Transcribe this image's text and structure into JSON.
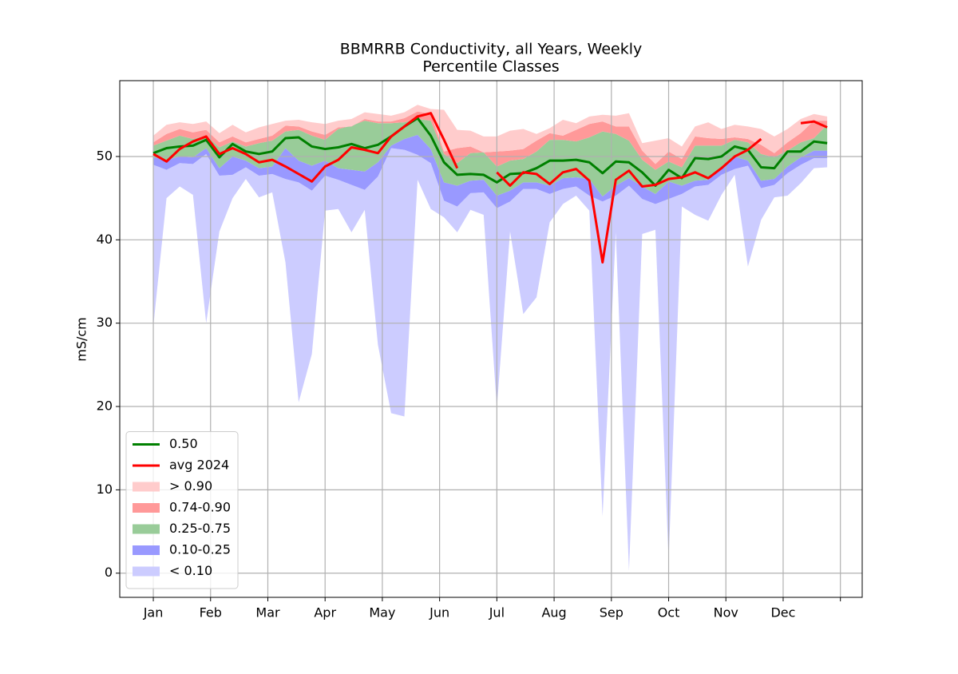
{
  "chart_data": {
    "type": "percentile-band",
    "title": [
      "BBMRRB Conductivity, all Years, Weekly",
      "Percentile Classes"
    ],
    "y_label": "mS/cm",
    "x": [
      1,
      2,
      3,
      4,
      5,
      6,
      7,
      8,
      9,
      10,
      11,
      12,
      13,
      14,
      15,
      16,
      17,
      18,
      19,
      20,
      21,
      22,
      23,
      24,
      25,
      26,
      27,
      28,
      29,
      30,
      31,
      32,
      33,
      34,
      35,
      36,
      37,
      38,
      39,
      40,
      41,
      42,
      43,
      44,
      45,
      46,
      47,
      48,
      49,
      50,
      51,
      52
    ],
    "xlim": [
      -1.54,
      54.65
    ],
    "xticks": [
      {
        "value": 1,
        "label": "Jan"
      },
      {
        "value": 5.333,
        "label": "Feb"
      },
      {
        "value": 9.667,
        "label": "Mar"
      },
      {
        "value": 14,
        "label": "Apr"
      },
      {
        "value": 18.333,
        "label": "May"
      },
      {
        "value": 22.667,
        "label": "Jun"
      },
      {
        "value": 27,
        "label": "Jul"
      },
      {
        "value": 31.333,
        "label": "Aug"
      },
      {
        "value": 35.667,
        "label": "Sep"
      },
      {
        "value": 40,
        "label": "Oct"
      },
      {
        "value": 44.333,
        "label": "Nov"
      },
      {
        "value": 48.667,
        "label": "Dec"
      },
      {
        "value": 53,
        "label": null
      }
    ],
    "ylim": [
      -2.9,
      59.1
    ],
    "yticks": [
      0,
      10,
      20,
      30,
      40,
      50
    ],
    "grid": true,
    "legend": "lower left",
    "series": [
      {
        "name": "0.50",
        "color": "#008000",
        "values": [
          50.4,
          51.0,
          51.2,
          51.3,
          52.0,
          49.9,
          51.5,
          50.6,
          50.3,
          50.6,
          52.2,
          52.3,
          51.2,
          50.9,
          51.1,
          51.5,
          51.0,
          51.4,
          52.4,
          53.6,
          54.6,
          52.5,
          49.3,
          47.8,
          47.9,
          47.8,
          46.9,
          47.9,
          48.0,
          48.6,
          49.5,
          49.5,
          49.6,
          49.3,
          48.0,
          49.4,
          49.3,
          48.1,
          46.5,
          48.4,
          47.4,
          49.8,
          49.7,
          50.0,
          51.2,
          50.8,
          48.7,
          48.6,
          50.6,
          50.6,
          51.8,
          51.6
        ]
      },
      {
        "name": "avg 2024",
        "color": "#ff0000",
        "values": [
          50.3,
          49.4,
          50.9,
          51.8,
          52.4,
          50.3,
          51.0,
          50.3,
          49.3,
          49.6,
          48.8,
          47.9,
          47.0,
          48.8,
          49.6,
          51.1,
          50.8,
          50.4,
          52.4,
          53.6,
          54.8,
          55.2,
          52.0,
          48.6,
          null,
          null,
          48.1,
          46.5,
          48.1,
          47.9,
          46.7,
          48.1,
          48.5,
          47.1,
          37.3,
          47.2,
          48.3,
          46.4,
          46.6,
          47.3,
          47.5,
          48.1,
          47.4,
          48.6,
          50.0,
          50.8,
          52.1,
          null,
          null,
          54.0,
          54.2,
          53.5
        ]
      }
    ],
    "bands": [
      {
        "name": "< 0.10",
        "color": "#ccccff",
        "lower": [
          29.6,
          45.0,
          46.4,
          45.4,
          30.0,
          41.0,
          45.0,
          47.3,
          45.1,
          45.7,
          37.3,
          20.5,
          26.3,
          43.5,
          43.7,
          40.9,
          43.6,
          27.4,
          19.2,
          18.8,
          47.2,
          43.7,
          42.7,
          40.9,
          43.6,
          43.0,
          19.8,
          41.0,
          31.1,
          33.1,
          42.1,
          44.3,
          45.3,
          43.5,
          6.8,
          40.9,
          0.3,
          40.7,
          41.2,
          1.5,
          44.0,
          43.0,
          42.3,
          45.4,
          47.8,
          36.8,
          42.4,
          45.1,
          45.3,
          46.8,
          48.6,
          48.7
        ],
        "upper": [
          49.0,
          48.4,
          49.2,
          49.1,
          50.3,
          47.7,
          47.8,
          48.7,
          47.7,
          47.9,
          47.3,
          46.9,
          45.9,
          47.7,
          47.2,
          46.6,
          46.0,
          47.6,
          51.0,
          50.8,
          50.2,
          49.2,
          44.7,
          44.0,
          45.6,
          45.7,
          43.8,
          44.6,
          46.1,
          46.1,
          45.5,
          46.1,
          46.4,
          45.3,
          44.6,
          45.3,
          46.5,
          44.9,
          44.3,
          44.9,
          45.5,
          46.4,
          46.6,
          47.8,
          48.5,
          48.9,
          46.2,
          46.6,
          48.0,
          49.0,
          49.8,
          49.8
        ]
      },
      {
        "name": "0.10-0.25",
        "color": "#9999ff",
        "upper": [
          49.9,
          49.6,
          50.0,
          49.9,
          51.0,
          48.6,
          50.0,
          49.5,
          48.6,
          48.8,
          51.0,
          49.5,
          48.9,
          49.5,
          48.6,
          48.4,
          48.2,
          49.3,
          51.3,
          52.1,
          52.6,
          50.9,
          46.9,
          46.5,
          47.1,
          47.2,
          45.3,
          45.9,
          46.9,
          46.9,
          46.5,
          47.4,
          47.5,
          47.3,
          45.2,
          46.5,
          47.4,
          46.4,
          45.5,
          47.0,
          46.5,
          47.1,
          47.2,
          48.7,
          50.0,
          49.5,
          47.1,
          47.3,
          48.8,
          49.9,
          50.7,
          50.7
        ]
      },
      {
        "name": "0.25-0.75",
        "color": "#99cc99",
        "upper": [
          51.3,
          51.9,
          52.5,
          52.1,
          52.5,
          51.1,
          51.8,
          51.2,
          51.6,
          51.9,
          53.0,
          53.2,
          52.5,
          52.0,
          53.3,
          53.7,
          54.3,
          54.0,
          54.0,
          54.1,
          54.5,
          54.3,
          50.3,
          49.2,
          50.4,
          50.5,
          48.8,
          49.5,
          49.7,
          50.6,
          52.0,
          52.0,
          51.8,
          52.3,
          53.0,
          52.7,
          51.9,
          49.6,
          48.4,
          49.4,
          48.7,
          51.3,
          51.3,
          51.3,
          52.0,
          51.7,
          50.3,
          49.9,
          50.7,
          51.7,
          52.2,
          53.8
        ]
      },
      {
        "name": "0.74-0.90",
        "color": "#ff9999",
        "upper": [
          51.7,
          52.7,
          53.3,
          52.9,
          53.2,
          51.7,
          52.4,
          51.7,
          52.1,
          52.5,
          53.7,
          53.6,
          53.0,
          52.6,
          53.5,
          53.6,
          54.5,
          54.2,
          54.2,
          54.6,
          55.4,
          55.1,
          50.6,
          51.0,
          51.2,
          50.5,
          50.6,
          50.7,
          50.9,
          51.9,
          52.8,
          52.5,
          53.2,
          53.9,
          54.2,
          53.6,
          53.6,
          50.7,
          49.1,
          50.6,
          49.7,
          52.4,
          52.2,
          52.1,
          52.3,
          52.1,
          51.4,
          50.4,
          51.7,
          52.8,
          54.3,
          54.3
        ]
      },
      {
        "name": "> 0.90",
        "color": "#ffcccc",
        "upper": [
          52.5,
          53.8,
          54.1,
          53.9,
          54.2,
          52.8,
          53.8,
          52.9,
          53.5,
          53.9,
          54.3,
          54.4,
          54.1,
          53.9,
          54.3,
          54.5,
          55.3,
          55.1,
          54.9,
          55.3,
          56.2,
          55.7,
          55.6,
          53.2,
          53.1,
          52.4,
          52.4,
          53.1,
          53.3,
          52.7,
          53.4,
          54.4,
          54.0,
          54.8,
          55.0,
          54.9,
          55.2,
          51.6,
          51.9,
          52.2,
          51.2,
          53.6,
          54.1,
          53.3,
          53.8,
          53.6,
          53.3,
          52.4,
          53.3,
          54.5,
          55.1,
          54.8
        ]
      }
    ]
  }
}
